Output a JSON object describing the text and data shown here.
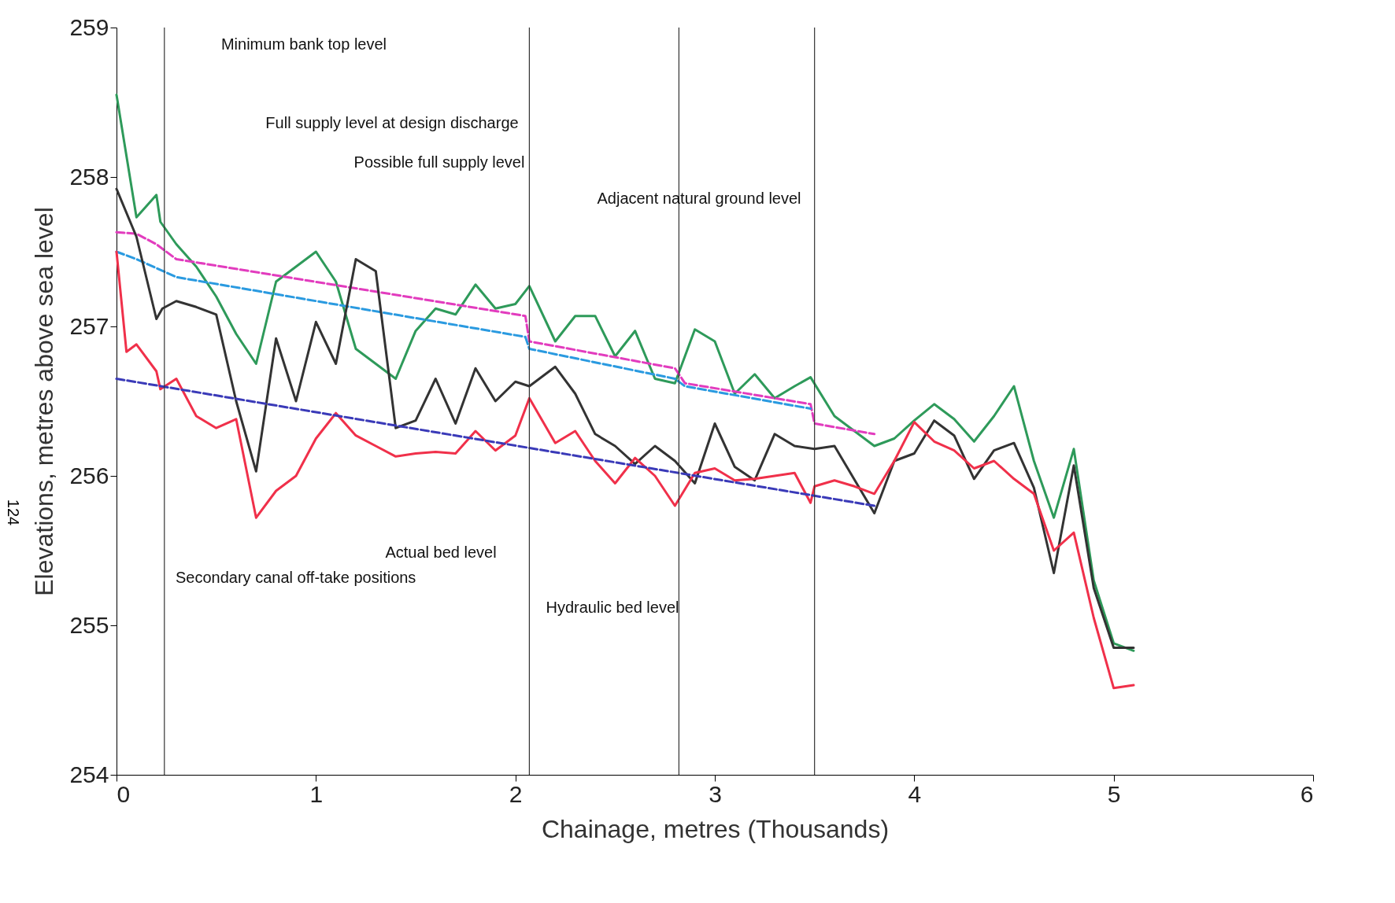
{
  "chart_data": {
    "type": "line",
    "xlabel": "Chainage, metres (Thousands)",
    "ylabel": "Elevations, metres above sea level",
    "xlim": [
      0,
      6
    ],
    "xticks": [
      0,
      1,
      2,
      3,
      4,
      5,
      6
    ],
    "ylim": [
      254,
      259
    ],
    "yticks": [
      254,
      255,
      256,
      257,
      258,
      259
    ],
    "grid": false,
    "marker": "none",
    "series": [
      {
        "color": "#2e9a5a",
        "line_style": "solid",
        "x": [
          0,
          0.1,
          0.2,
          0.22,
          0.3,
          0.4,
          0.5,
          0.6,
          0.7,
          0.8,
          0.9,
          1.0,
          1.1,
          1.2,
          1.3,
          1.4,
          1.5,
          1.6,
          1.7,
          1.8,
          1.9,
          2.0,
          2.07,
          2.2,
          2.3,
          2.4,
          2.5,
          2.6,
          2.7,
          2.8,
          2.9,
          3.0,
          3.1,
          3.2,
          3.3,
          3.4,
          3.48,
          3.6,
          3.7,
          3.8,
          3.9,
          4.0,
          4.1,
          4.2,
          4.3,
          4.4,
          4.5,
          4.6,
          4.7,
          4.8,
          4.9,
          5.0,
          5.1
        ],
        "values": [
          258.55,
          257.73,
          257.88,
          257.7,
          257.55,
          257.4,
          257.2,
          256.95,
          256.75,
          257.3,
          257.4,
          257.5,
          257.3,
          256.85,
          256.75,
          256.65,
          256.97,
          257.12,
          257.08,
          257.28,
          257.12,
          257.15,
          257.27,
          256.9,
          257.07,
          257.07,
          256.8,
          256.97,
          256.65,
          256.62,
          256.98,
          256.9,
          256.55,
          256.68,
          256.52,
          256.6,
          256.66,
          256.4,
          256.3,
          256.2,
          256.25,
          256.37,
          256.48,
          256.38,
          256.23,
          256.4,
          256.6,
          256.1,
          255.72,
          256.18,
          255.3,
          254.88,
          254.83
        ]
      },
      {
        "color": "#e23cbe",
        "line_style": "dashed",
        "x": [
          0,
          0.1,
          0.2,
          0.3,
          2.05,
          2.07,
          2.8,
          2.85,
          3.48,
          3.5,
          3.8
        ],
        "values": [
          257.63,
          257.62,
          257.55,
          257.45,
          257.07,
          256.9,
          256.72,
          256.62,
          256.48,
          256.35,
          256.28
        ]
      },
      {
        "color": "#2a9ae0",
        "line_style": "dashed",
        "x": [
          0,
          0.1,
          0.15,
          0.3,
          2.05,
          2.07,
          2.8,
          2.85,
          3.48
        ],
        "values": [
          257.5,
          257.45,
          257.42,
          257.33,
          256.93,
          256.85,
          256.65,
          256.6,
          256.45
        ]
      },
      {
        "color": "#333333",
        "line_style": "solid",
        "x": [
          0,
          0.1,
          0.2,
          0.23,
          0.3,
          0.4,
          0.5,
          0.6,
          0.7,
          0.8,
          0.9,
          1.0,
          1.1,
          1.2,
          1.3,
          1.4,
          1.5,
          1.6,
          1.7,
          1.8,
          1.9,
          2.0,
          2.07,
          2.2,
          2.3,
          2.4,
          2.5,
          2.6,
          2.7,
          2.8,
          2.9,
          3.0,
          3.1,
          3.2,
          3.3,
          3.4,
          3.5,
          3.6,
          3.8,
          3.9,
          4.0,
          4.1,
          4.2,
          4.3,
          4.4,
          4.5,
          4.6,
          4.7,
          4.8,
          4.9,
          5.0,
          5.1
        ],
        "values": [
          257.92,
          257.6,
          257.05,
          257.12,
          257.17,
          257.13,
          257.08,
          256.5,
          256.03,
          256.92,
          256.5,
          257.03,
          256.75,
          257.45,
          257.37,
          256.32,
          256.37,
          256.65,
          256.35,
          256.72,
          256.5,
          256.63,
          256.6,
          256.73,
          256.55,
          256.28,
          256.2,
          256.08,
          256.2,
          256.1,
          255.95,
          256.35,
          256.06,
          255.97,
          256.28,
          256.2,
          256.18,
          256.2,
          255.75,
          256.1,
          256.15,
          256.37,
          256.27,
          255.98,
          256.17,
          256.22,
          255.92,
          255.35,
          256.07,
          255.25,
          254.85,
          254.85
        ]
      },
      {
        "color": "#f0304a",
        "line_style": "solid",
        "x": [
          0,
          0.05,
          0.1,
          0.2,
          0.22,
          0.3,
          0.4,
          0.5,
          0.6,
          0.7,
          0.8,
          0.9,
          1.0,
          1.1,
          1.2,
          1.3,
          1.4,
          1.5,
          1.6,
          1.7,
          1.8,
          1.9,
          2.0,
          2.07,
          2.2,
          2.3,
          2.4,
          2.5,
          2.6,
          2.7,
          2.8,
          2.9,
          3.0,
          3.1,
          3.2,
          3.3,
          3.4,
          3.48,
          3.5,
          3.6,
          3.7,
          3.8,
          3.9,
          4.0,
          4.1,
          4.2,
          4.3,
          4.4,
          4.5,
          4.6,
          4.7,
          4.8,
          4.9,
          5.0,
          5.1
        ],
        "values": [
          257.5,
          256.83,
          256.88,
          256.7,
          256.58,
          256.65,
          256.4,
          256.32,
          256.38,
          255.72,
          255.9,
          256.0,
          256.25,
          256.42,
          256.27,
          256.2,
          256.13,
          256.15,
          256.16,
          256.15,
          256.3,
          256.17,
          256.27,
          256.52,
          256.22,
          256.3,
          256.1,
          255.95,
          256.12,
          256.0,
          255.8,
          256.02,
          256.05,
          255.97,
          255.98,
          256.0,
          256.02,
          255.82,
          255.93,
          255.97,
          255.93,
          255.88,
          256.1,
          256.36,
          256.23,
          256.17,
          256.05,
          256.1,
          255.98,
          255.88,
          255.5,
          255.62,
          255.05,
          254.58,
          254.6
        ]
      },
      {
        "color": "#3a3ab8",
        "line_style": "dashed",
        "x": [
          0,
          3.8
        ],
        "values": [
          256.65,
          255.8
        ]
      }
    ],
    "ref_lines": [
      {
        "axis": "x",
        "value": 0.24,
        "color": "#333333"
      },
      {
        "axis": "x",
        "value": 2.07,
        "color": "#333333"
      },
      {
        "axis": "x",
        "value": 2.82,
        "color": "#333333"
      },
      {
        "axis": "x",
        "value": 3.5,
        "color": "#333333"
      }
    ],
    "annotations": [
      "Minimum bank top level",
      "Full supply level at design discharge",
      "Possible full supply level",
      "Adjacent natural ground level",
      "Secondary canal off-take positions",
      "Actual bed level",
      "Hydraulic bed level",
      "124"
    ]
  }
}
